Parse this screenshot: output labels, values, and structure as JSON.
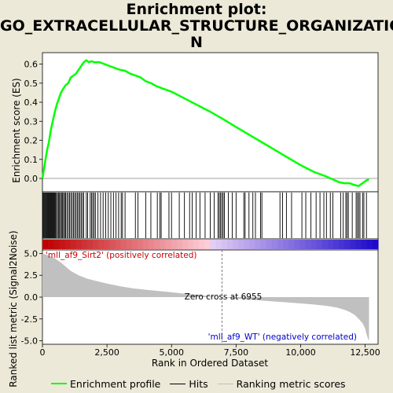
{
  "title_lines": [
    "Enrichment plot:",
    "GO_EXTRACELLULAR_STRUCTURE_ORGANIZATIO",
    "N"
  ],
  "colors": {
    "background": "#ece9d8",
    "plot_bg": "#ffffff",
    "es_line": "#00ff00",
    "hits": "#000000",
    "metric_fill": "#c0c0c0",
    "pos_label": "#cc0000",
    "neg_label": "#0000cc",
    "zero_line": "#808080"
  },
  "chart_data": [
    {
      "type": "line",
      "name": "enrichment-profile",
      "ylabel": "Enrichment score (ES)",
      "xlim": [
        0,
        13000
      ],
      "ylim": [
        -0.07,
        0.66
      ],
      "yticks": [
        0.0,
        0.1,
        0.2,
        0.3,
        0.4,
        0.5,
        0.6
      ],
      "ytick_labels": [
        "0.0",
        "0.1",
        "0.2",
        "0.3",
        "0.4",
        "0.5",
        "0.6"
      ],
      "x": [
        0,
        60,
        120,
        180,
        250,
        320,
        400,
        480,
        560,
        640,
        720,
        800,
        900,
        1000,
        1100,
        1200,
        1300,
        1400,
        1500,
        1600,
        1700,
        1800,
        1900,
        2000,
        2200,
        2400,
        2600,
        2800,
        3000,
        3200,
        3400,
        3600,
        3800,
        4000,
        4200,
        4400,
        4600,
        4800,
        5000,
        5500,
        6000,
        6500,
        6955,
        7500,
        8000,
        8500,
        9000,
        9500,
        10000,
        10500,
        11000,
        11500,
        11700,
        11900,
        12100,
        12250,
        12350,
        12450,
        12550,
        12650
      ],
      "y": [
        0.0,
        0.05,
        0.1,
        0.15,
        0.19,
        0.25,
        0.3,
        0.35,
        0.39,
        0.42,
        0.45,
        0.47,
        0.49,
        0.5,
        0.53,
        0.54,
        0.55,
        0.57,
        0.59,
        0.61,
        0.62,
        0.61,
        0.615,
        0.61,
        0.61,
        0.6,
        0.59,
        0.58,
        0.57,
        0.565,
        0.55,
        0.54,
        0.53,
        0.51,
        0.5,
        0.485,
        0.475,
        0.465,
        0.455,
        0.42,
        0.385,
        0.35,
        0.315,
        0.27,
        0.23,
        0.19,
        0.15,
        0.11,
        0.07,
        0.035,
        0.01,
        -0.02,
        -0.025,
        -0.025,
        -0.035,
        -0.04,
        -0.03,
        -0.02,
        -0.01,
        -0.005
      ]
    },
    {
      "type": "bar",
      "name": "hits",
      "xlim": [
        0,
        13000
      ],
      "hit_positions": [
        20,
        50,
        80,
        110,
        140,
        170,
        200,
        230,
        260,
        290,
        320,
        350,
        380,
        410,
        440,
        470,
        500,
        540,
        580,
        620,
        660,
        700,
        740,
        780,
        820,
        860,
        900,
        950,
        1000,
        1050,
        1100,
        1150,
        1200,
        1250,
        1300,
        1350,
        1400,
        1450,
        1500,
        1550,
        1600,
        1700,
        1750,
        1850,
        1900,
        1950,
        2000,
        2050,
        2150,
        2250,
        2350,
        2450,
        2550,
        2650,
        2750,
        2850,
        2950,
        3050,
        3100,
        3200,
        3600,
        3700,
        4000,
        4200,
        4450,
        4550,
        4600,
        4900,
        5000,
        5300,
        5500,
        5700,
        5800,
        5950,
        6100,
        6300,
        6500,
        6650,
        6800,
        6850,
        6900,
        6950,
        7000,
        7050,
        7200,
        7350,
        7500,
        7800,
        7850,
        8000,
        8150,
        8250,
        8450,
        8500,
        9200,
        9300,
        9450,
        9650,
        10050,
        10200,
        10400,
        10600,
        10750,
        10900,
        11000,
        11150,
        11250,
        11550,
        11650,
        11750,
        11800,
        11850,
        12000,
        12150,
        12200,
        12250,
        12300,
        12400,
        12450,
        12550
      ]
    },
    {
      "type": "area",
      "name": "ranking-metric",
      "xlabel": "Rank in Ordered Dataset",
      "ylabel": "Ranked list metric (Signal2Noise)",
      "xlim": [
        0,
        13000
      ],
      "ylim": [
        -5.4,
        5.4
      ],
      "xticks": [
        0,
        2500,
        5000,
        7500,
        10000,
        12500
      ],
      "xtick_labels": [
        "0",
        "2,500",
        "5,000",
        "7,500",
        "10,000",
        "12,500"
      ],
      "yticks": [
        -5.0,
        -2.5,
        0.0,
        2.5,
        5.0
      ],
      "ytick_labels": [
        "-5.0",
        "-2.5",
        "0.0",
        "2.5",
        "5.0"
      ],
      "x": [
        0,
        100,
        300,
        500,
        700,
        900,
        1100,
        1400,
        1700,
        2000,
        2500,
        3000,
        3500,
        4000,
        4500,
        5000,
        5500,
        6000,
        6500,
        6955,
        7500,
        8000,
        8500,
        9000,
        9500,
        10000,
        10500,
        11000,
        11400,
        11700,
        11900,
        12100,
        12250,
        12400,
        12500,
        12550,
        12600,
        12650
      ],
      "y": [
        5.0,
        4.9,
        4.7,
        4.4,
        4.0,
        3.5,
        3.0,
        2.5,
        2.15,
        1.9,
        1.55,
        1.25,
        1.0,
        0.85,
        0.7,
        0.55,
        0.4,
        0.25,
        0.12,
        0.0,
        -0.15,
        -0.28,
        -0.4,
        -0.5,
        -0.6,
        -0.72,
        -0.85,
        -1.0,
        -1.2,
        -1.45,
        -1.7,
        -2.05,
        -2.5,
        -3.0,
        -3.6,
        -4.2,
        -4.7,
        -5.0
      ],
      "zero_cross_label": "Zero cross at 6955",
      "zero_cross": 6955,
      "pos_label": "'mll_af9_Sirt2' (positively correlated)",
      "neg_label": "'mll_af9_WT' (negatively correlated)"
    }
  ],
  "legend": {
    "entries": [
      "Enrichment profile",
      "Hits",
      "Ranking metric scores"
    ]
  }
}
